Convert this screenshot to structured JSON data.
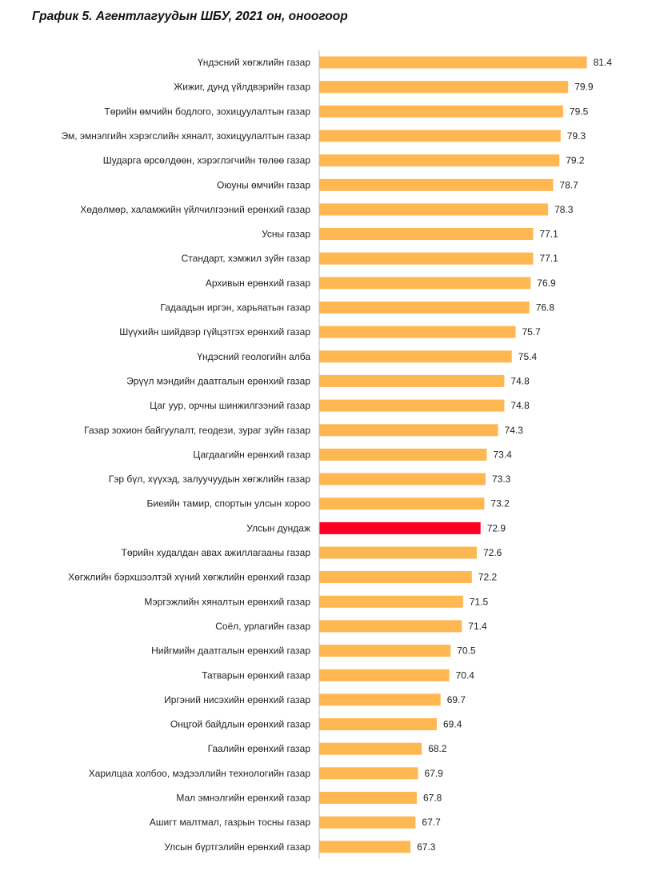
{
  "chart_data": {
    "type": "bar",
    "orientation": "horizontal",
    "title": "График 5. Агентлагуудын ШБУ, 2021 он, оноогоор",
    "xlabel": "",
    "ylabel": "",
    "xlim": [
      60,
      82
    ],
    "grid": false,
    "legend": "none",
    "colors": {
      "default": "#FFB752",
      "highlight": "#FF0022",
      "axis": "#bfbfbf"
    },
    "highlight_index": 19,
    "categories": [
      "Үндэсний хөгжлийн газар",
      "Жижиг, дунд үйлдвэрийн газар",
      "Төрийн өмчийн бодлого, зохицуулалтын газар",
      "Эм, эмнэлгийн хэрэгслийн хяналт, зохицуулалтын газар",
      "Шударга өрсөлдөөн, хэрэглэгчийн төлөө газар",
      "Оюуны өмчийн газар",
      "Хөдөлмөр, халамжийн үйлчилгээний ерөнхий газар",
      "Усны газар",
      "Стандарт, хэмжил зүйн газар",
      "Архивын ерөнхий газар",
      "Гадаадын иргэн, харьяатын газар",
      "Шүүхийн шийдвэр гүйцэтгэх ерөнхий газар",
      "Үндэсний геологийн алба",
      "Эрүүл мэндийн даатгалын ерөнхий газар",
      "Цаг уур, орчны  шинжилгээний газар",
      "Газар зохион байгуулалт, геодези, зураг зүйн газар",
      "Цагдаагийн ерөнхий газар",
      "Гэр бүл, хүүхэд, залуучуудын хөгжлийн газар",
      "Биеийн тамир, спортын улсын хороо",
      "Улсын дундаж",
      "Төрийн худалдан авах ажиллагааны газар",
      "Хөгжлийн бэрхшээлтэй хүний хөгжлийн ерөнхий газар",
      "Мэргэжлийн хяналтын ерөнхий газар",
      "Соёл, урлагийн газар",
      "Нийгмийн даатгалын ерөнхий газар",
      "Татварын ерөнхий газар",
      "Иргэний нисэхийн ерөнхий газар",
      "Онцгой байдлын ерөнхий газар",
      "Гаалийн ерөнхий газар",
      "Харилцаа холбоо, мэдээллийн технологийн газар",
      "Мал эмнэлгийн ерөнхий газар",
      "Ашигт малтмал, газрын тосны газар",
      "Улсын бүртгэлийн ерөнхий газар"
    ],
    "values": [
      81.4,
      79.9,
      79.5,
      79.3,
      79.2,
      78.7,
      78.3,
      77.1,
      77.1,
      76.9,
      76.8,
      75.7,
      75.4,
      74.8,
      74.8,
      74.3,
      73.4,
      73.3,
      73.2,
      72.9,
      72.6,
      72.2,
      71.5,
      71.4,
      70.5,
      70.4,
      69.7,
      69.4,
      68.2,
      67.9,
      67.8,
      67.7,
      67.3
    ]
  }
}
